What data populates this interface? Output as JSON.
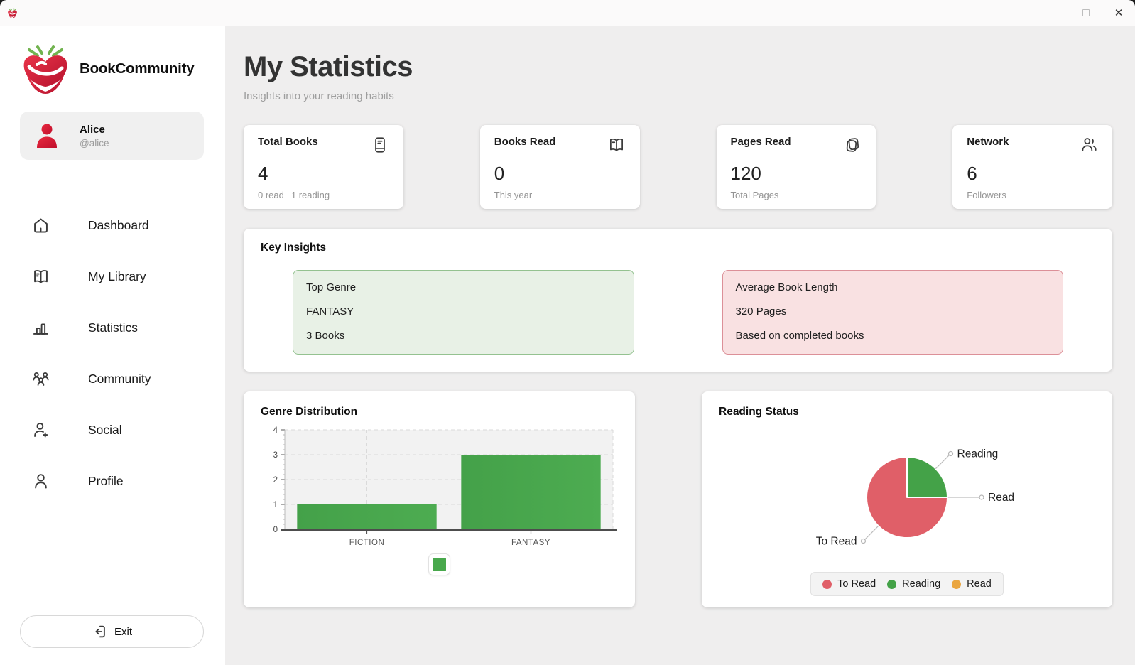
{
  "brand": {
    "name": "BookCommunity"
  },
  "user": {
    "name": "Alice",
    "handle": "@alice"
  },
  "sidebar": {
    "nav": [
      {
        "icon": "home-icon",
        "label": "Dashboard"
      },
      {
        "icon": "open-book-icon",
        "label": "My Library"
      },
      {
        "icon": "bar-chart-icon",
        "label": "Statistics"
      },
      {
        "icon": "people-group-icon",
        "label": "Community"
      },
      {
        "icon": "person-add-icon",
        "label": "Social"
      },
      {
        "icon": "person-icon",
        "label": "Profile"
      }
    ],
    "exit_label": "Exit"
  },
  "header": {
    "title": "My Statistics",
    "subtitle": "Insights into your reading habits"
  },
  "stats": {
    "cards": [
      {
        "title": "Total Books",
        "icon": "journal-book-icon",
        "value": "4",
        "sub_parts": [
          "0 read",
          "1 reading"
        ]
      },
      {
        "title": "Books Read",
        "icon": "open-book-icon",
        "value": "0",
        "sub": "This year"
      },
      {
        "title": "Pages Read",
        "icon": "pages-icon",
        "value": "120",
        "sub": "Total Pages"
      },
      {
        "title": "Network",
        "icon": "people-icon",
        "value": "6",
        "sub": "Followers"
      }
    ]
  },
  "insights": {
    "title": "Key Insights",
    "items": [
      {
        "tone": "green",
        "lines": [
          "Top Genre",
          "FANTASY",
          "3 Books"
        ]
      },
      {
        "tone": "red",
        "lines": [
          "Average Book Length",
          "320 Pages",
          "Based on completed books"
        ]
      }
    ]
  },
  "chart_data": [
    {
      "type": "bar",
      "title": "Genre Distribution",
      "categories": [
        "FICTION",
        "FANTASY"
      ],
      "values": [
        1,
        3
      ],
      "ylim": [
        0,
        4
      ],
      "yticks": [
        0,
        1,
        2,
        3,
        4
      ],
      "bar_color": "#48a84c",
      "plot_bg": "#f2f2f2",
      "grid": "dashed",
      "legend_marker_only": true
    },
    {
      "type": "pie",
      "title": "Reading Status",
      "slices": [
        {
          "label": "Reading",
          "value": 1,
          "color": "#44a248"
        },
        {
          "label": "Read",
          "value": 0,
          "color": "#eaa640"
        },
        {
          "label": "To Read",
          "value": 3,
          "color": "#e05f68"
        }
      ],
      "legend": [
        {
          "label": "To Read",
          "color": "#e05f68"
        },
        {
          "label": "Reading",
          "color": "#44a248"
        },
        {
          "label": "Read",
          "color": "#eaa640"
        }
      ],
      "legend_position": "bottom"
    }
  ],
  "colors": {
    "accent_red": "#d92638",
    "accent_green": "#48a84c",
    "accent_orange": "#eaa640",
    "main_bg": "#efeeee"
  }
}
